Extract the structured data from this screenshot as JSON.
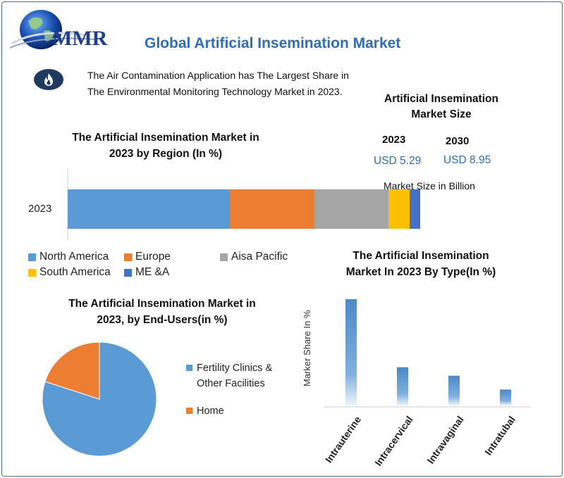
{
  "brand": {
    "logo_text": "MMR",
    "title_color": "#2f6db5"
  },
  "header": {
    "title": "Global Artificial Insemination Market"
  },
  "info": {
    "icon": "flame-icon",
    "line1": "The Air Contamination Application has The Largest Share in",
    "line2": "The Environmental Monitoring Technology Market in 2023."
  },
  "market_size": {
    "title_line1": "Artificial Insemination",
    "title_line2": "Market Size",
    "year_a": "2023",
    "value_a": "USD 5.29",
    "year_b": "2030",
    "value_b": "USD 8.95",
    "note": "Market Size in Billion"
  },
  "chart_data": [
    {
      "type": "bar",
      "orientation": "horizontal-stacked",
      "title": "The Artificial Insemination Market in 2023 by Region (In %)",
      "title_line1": "The Artificial Insemination Market in",
      "title_line2": "2023 by Region (In %)",
      "categories": [
        "2023"
      ],
      "series": [
        {
          "name": "North America",
          "values": [
            46
          ],
          "color": "#5b9bd5"
        },
        {
          "name": "Europe",
          "values": [
            24
          ],
          "color": "#ed7d31"
        },
        {
          "name": "Aisa Pacific",
          "values": [
            21
          ],
          "color": "#a5a5a5"
        },
        {
          "name": "South America",
          "values": [
            6
          ],
          "color": "#ffc000"
        },
        {
          "name": "ME &A",
          "values": [
            3
          ],
          "color": "#4472c4"
        }
      ],
      "legend": "bottom"
    },
    {
      "type": "pie",
      "title": "The Artificial Insemination Market in 2023, by End-Users(in %)",
      "title_line1": "The Artificial Insemination Market in",
      "title_line2": "2023, by End-Users(in %)",
      "slices": [
        {
          "name": "Fertility Clinics & Other Facilities",
          "label_line1": "Fertility Clinics &",
          "label_line2": "Other Facilities",
          "value": 80,
          "color": "#5b9bd5"
        },
        {
          "name": "Home",
          "label_line1": "Home",
          "label_line2": "",
          "value": 20,
          "color": "#ed7d31"
        }
      ],
      "legend": "right"
    },
    {
      "type": "bar",
      "title": "The Artificial Insemination Market In 2023 By Type(In %)",
      "title_line1": "The Artificial Insemination",
      "title_line2": "Market In 2023 By Type(In %)",
      "ylabel": "Marker Share In %",
      "categories": [
        "Intrauterine",
        "Intracervical",
        "Intravaginal",
        "Intratubal"
      ],
      "values": [
        100,
        36,
        28,
        15
      ],
      "ylim": [
        0,
        100
      ],
      "color": "#4a89c8"
    }
  ]
}
